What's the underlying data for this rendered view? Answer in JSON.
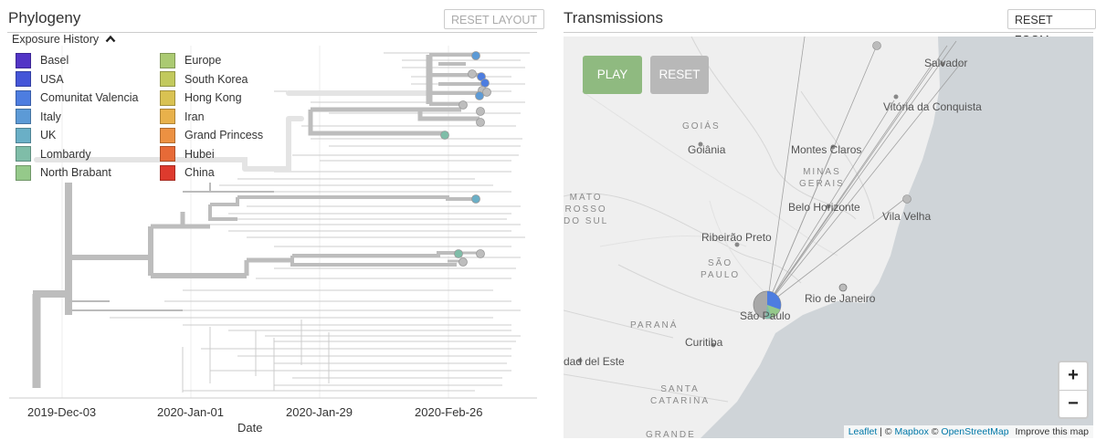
{
  "phylogeny": {
    "title": "Phylogeny",
    "reset_layout_label": "RESET LAYOUT",
    "legend_toggle_label": "Exposure History",
    "legend": [
      {
        "label": "Basel",
        "color": "#5234c6"
      },
      {
        "label": "USA",
        "color": "#4455d8"
      },
      {
        "label": "Comunitat Valencia",
        "color": "#4d7de0"
      },
      {
        "label": "Italy",
        "color": "#5c9ad6"
      },
      {
        "label": "UK",
        "color": "#6aafc6"
      },
      {
        "label": "Lombardy",
        "color": "#7fbda8"
      },
      {
        "label": "North Brabant",
        "color": "#95c98a"
      },
      {
        "label": "Europe",
        "color": "#abca72"
      },
      {
        "label": "South Korea",
        "color": "#c2c95d"
      },
      {
        "label": "Hong Kong",
        "color": "#d9c252"
      },
      {
        "label": "Iran",
        "color": "#e8b14b"
      },
      {
        "label": "Grand Princess",
        "color": "#ec9142"
      },
      {
        "label": "Hubei",
        "color": "#e76a37"
      },
      {
        "label": "China",
        "color": "#de3a2d"
      }
    ],
    "axis": {
      "ticks": [
        "2019-Dec-03",
        "2020-Jan-01",
        "2020-Jan-29",
        "2020-Feb-26"
      ],
      "label": "Date"
    }
  },
  "transmissions": {
    "title": "Transmissions",
    "reset_zoom_label": "RESET ZOOM",
    "play_label": "PLAY",
    "reset_label": "RESET",
    "zoom_in_label": "+",
    "zoom_out_label": "−",
    "attribution": {
      "leaflet": "Leaflet",
      "sep1": " | © ",
      "mapbox": "Mapbox",
      "sep2": " © ",
      "osm": "OpenStreetMap",
      "improve": "Improve this map"
    },
    "cities": [
      "Salvador",
      "Vitória da Conquista",
      "Goiânia",
      "Montes Claros",
      "Belo Horizonte",
      "Vila Velha",
      "Ribeirão Preto",
      "Rio de Janeiro",
      "São Paulo",
      "Curitiba",
      "dad del Este"
    ],
    "regions": [
      "GOIÁS",
      "MINAS\nGERAIS",
      "MATO\nROSSO\nDO SUL",
      "SÃO\nPAULO",
      "PARANÁ",
      "SANTA\nCATARINA",
      "GRANDE"
    ]
  }
}
